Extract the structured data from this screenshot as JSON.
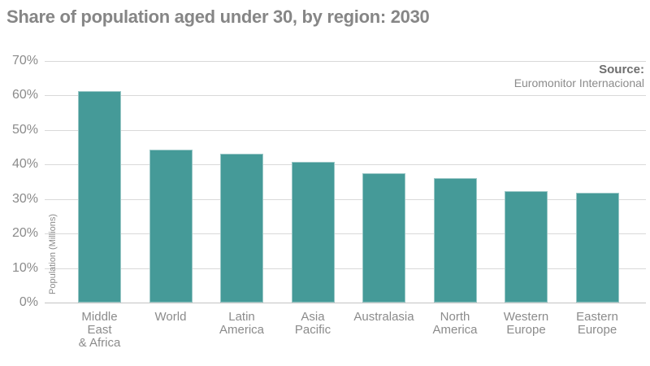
{
  "title": "Share of population aged under 30, by region: 2030",
  "source": {
    "label": "Source:",
    "name": "Euromonitor Internacional"
  },
  "colors": {
    "bar_fill": "#459A98",
    "gridline": "#D9D9D9",
    "axis_line": "#C3C3C3",
    "title_text": "#868686",
    "tick_text": "#8B8B8B",
    "label_text": "#8B8B8B",
    "source_label_text": "#6E6E6E",
    "source_name_text": "#8B8B8B"
  },
  "chart_data": {
    "type": "bar",
    "title": "Share of population aged under 30, by region: 2030",
    "categories": [
      "Middle East & Africa",
      "World",
      "Latin America",
      "Asia Pacific",
      "Australasia",
      "North America",
      "Western Europe",
      "Eastern Europe"
    ],
    "category_lines": [
      [
        "Middle",
        "East",
        "& Africa"
      ],
      [
        "World"
      ],
      [
        "Latin",
        "America"
      ],
      [
        "Asia",
        "Pacific"
      ],
      [
        "Australasia"
      ],
      [
        "North",
        "America"
      ],
      [
        "Western",
        "Europe"
      ],
      [
        "Eastern",
        "Europe"
      ]
    ],
    "values": [
      61.2,
      44.3,
      43.2,
      40.7,
      37.4,
      36.0,
      32.4,
      31.8
    ],
    "xlabel": "",
    "ylabel": "Population (Millions)",
    "yticks": [
      "0%",
      "10%",
      "20%",
      "30%",
      "40%",
      "50%",
      "60%",
      "70%"
    ],
    "ylim": [
      0,
      70
    ],
    "grid": true,
    "legend": false,
    "annotation": "Source: Euromonitor Internacional"
  }
}
